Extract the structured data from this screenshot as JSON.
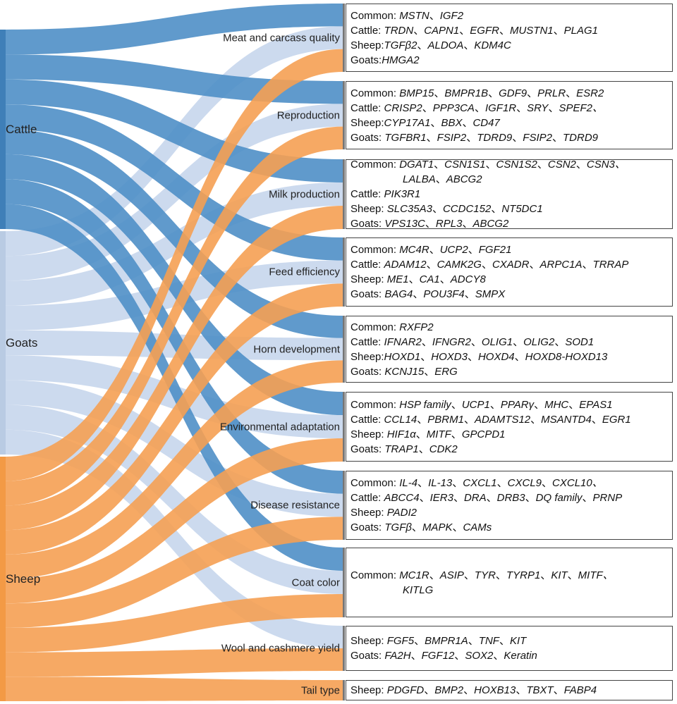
{
  "separator": "、",
  "sources": [
    {
      "label": "Cattle"
    },
    {
      "label": "Goats"
    },
    {
      "label": "Sheep"
    }
  ],
  "targets": [
    {
      "label": "Meat and carcass quality",
      "rows": [
        {
          "label": "Common: ",
          "genes": [
            "MSTN",
            "IGF2"
          ]
        },
        {
          "label": "Cattle: ",
          "genes": [
            "TRDN",
            "CAPN1",
            "EGFR",
            "MUSTN1",
            "PLAG1"
          ]
        },
        {
          "label": "Sheep:",
          "genes": [
            "TGFβ2",
            "ALDOA",
            "KDM4C"
          ]
        },
        {
          "label": "Goats:",
          "genes": [
            "HMGA2"
          ]
        }
      ]
    },
    {
      "label": "Reproduction",
      "rows": [
        {
          "label": "Common: ",
          "genes": [
            "BMP15",
            "BMPR1B",
            "GDF9",
            "PRLR",
            "ESR2"
          ]
        },
        {
          "label": "Cattle: ",
          "genes": [
            "CRISP2",
            "PPP3CA",
            "IGF1R",
            "SRY",
            "SPEF2、"
          ]
        },
        {
          "label": "Sheep:",
          "genes": [
            "CYP17A1",
            "BBX",
            "CD47"
          ]
        },
        {
          "label": "Goats: ",
          "genes": [
            "TGFBR1",
            "FSIP2",
            "TDRD9",
            "FSIP2",
            "TDRD9"
          ]
        }
      ]
    },
    {
      "label": "Milk production",
      "rows": [
        {
          "label": "Common: ",
          "genes": [
            "DGAT1",
            "CSN1S1",
            "CSN1S2",
            "CSN2",
            "CSN3、"
          ]
        },
        {
          "genes": [
            "LALBA",
            "ABCG2"
          ]
        },
        {
          "label": "Cattle: ",
          "genes": [
            "PIK3R1"
          ]
        },
        {
          "label": "Sheep: ",
          "genes": [
            "SLC35A3",
            "CCDC152",
            "NT5DC1"
          ]
        },
        {
          "label": "Goats: ",
          "genes": [
            "VPS13C",
            "RPL3",
            "ABCG2"
          ]
        }
      ]
    },
    {
      "label": "Feed efficiency",
      "rows": [
        {
          "label": "Common: ",
          "genes": [
            "MC4R",
            "UCP2",
            "FGF21"
          ]
        },
        {
          "label": "Cattle: ",
          "genes": [
            "ADAM12",
            "CAMK2G",
            "CXADR",
            "ARPC1A",
            "TRRAP"
          ]
        },
        {
          "label": "Sheep: ",
          "genes": [
            "ME1",
            "CA1",
            "ADCY8"
          ]
        },
        {
          "label": "Goats: ",
          "genes": [
            "BAG4",
            "POU3F4",
            "SMPX"
          ]
        }
      ]
    },
    {
      "label": "Horn development",
      "rows": [
        {
          "label": "Common: ",
          "genes": [
            "RXFP2"
          ]
        },
        {
          "label": "Cattle: ",
          "genes": [
            "IFNAR2",
            "IFNGR2",
            "OLIG1",
            "OLIG2",
            "SOD1"
          ]
        },
        {
          "label": "Sheep:",
          "genes": [
            "HOXD1",
            "HOXD3",
            "HOXD4",
            "HOXD8-HOXD13"
          ]
        },
        {
          "label": "Goats: ",
          "genes": [
            "KCNJ15",
            "ERG"
          ]
        }
      ]
    },
    {
      "label": "Environmental adaptation",
      "rows": [
        {
          "label": "Common: ",
          "genes": [
            "HSP family",
            "UCP1",
            "PPARγ",
            "MHC",
            "EPAS1"
          ]
        },
        {
          "label": "Cattle: ",
          "genes": [
            "CCL14",
            "PBRM1",
            "ADAMTS12",
            "MSANTD4",
            "EGR1"
          ]
        },
        {
          "label": "Sheep: ",
          "genes": [
            "HIF1α",
            "MITF",
            "GPCPD1"
          ]
        },
        {
          "label": "Goats: ",
          "genes": [
            "TRAP1",
            "CDK2"
          ]
        }
      ]
    },
    {
      "label": "Disease resistance",
      "rows": [
        {
          "label": "Common: ",
          "genes": [
            "IL-4",
            "IL-13",
            "CXCL1",
            "CXCL9",
            "CXCL10、"
          ]
        },
        {
          "label": "Cattle: ",
          "genes": [
            "ABCC4",
            "IER3",
            "DRA",
            "DRB3",
            "DQ family",
            "PRNP"
          ]
        },
        {
          "label": "Sheep: ",
          "genes": [
            "PADI2"
          ]
        },
        {
          "label": "Goats: ",
          "genes": [
            "TGFβ",
            "MAPK",
            "CAMs"
          ]
        }
      ]
    },
    {
      "label": "Coat color",
      "rows": [
        {
          "label": "Common: ",
          "genes": [
            "MC1R",
            "ASIP",
            "TYR",
            "TYRP1",
            "KIT",
            "MITF、"
          ]
        },
        {
          "genes": [
            "KITLG"
          ]
        }
      ]
    },
    {
      "label": "Wool and cashmere yield",
      "rows": [
        {
          "label": "Sheep: ",
          "genes": [
            "FGF5",
            "BMPR1A",
            "TNF",
            "KIT"
          ]
        },
        {
          "label": "Goats: ",
          "genes": [
            "FA2H",
            "FGF12",
            "SOX2",
            "Keratin"
          ]
        }
      ]
    },
    {
      "label": "Tail type",
      "rows": [
        {
          "label": "Sheep: ",
          "genes": [
            "PDGFD",
            "BMP2",
            "HOXB13",
            "TBXT",
            "FABP4"
          ]
        }
      ]
    }
  ]
}
